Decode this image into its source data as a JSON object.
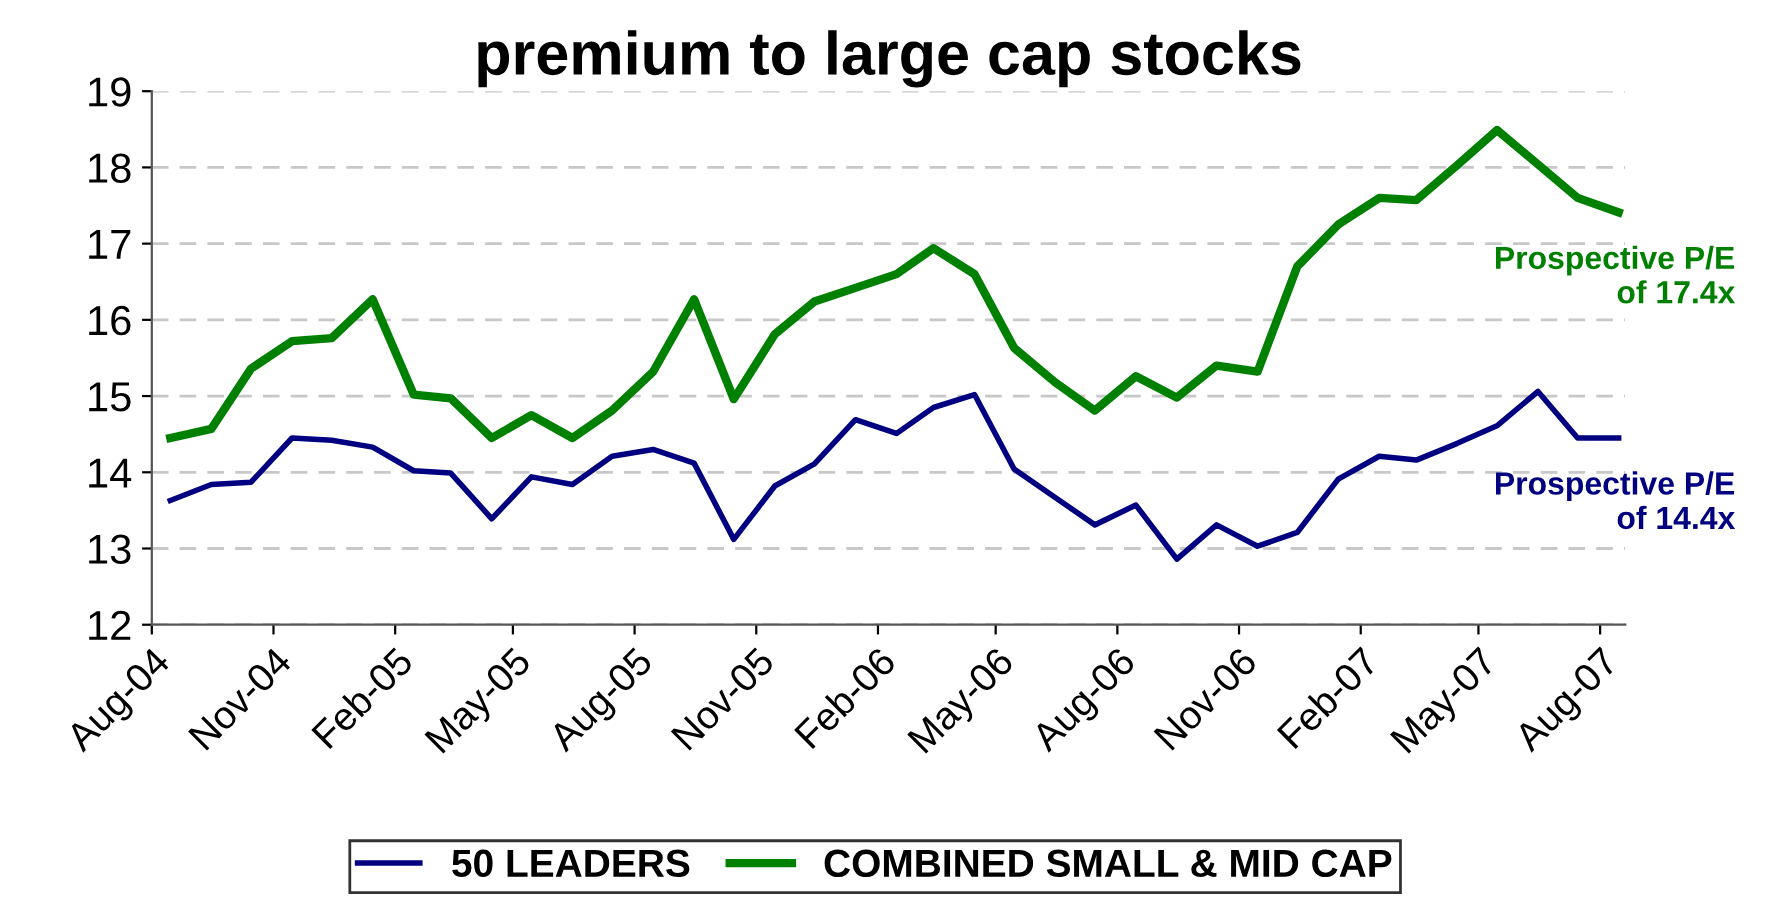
{
  "chart_data": {
    "type": "line",
    "title": "premium to large cap stocks",
    "x": [
      "2004-08-15",
      "2004-09-15",
      "2004-10-15",
      "2004-11-15",
      "2004-12-15",
      "2005-01-15",
      "2005-02-15",
      "2005-03-15",
      "2005-04-15",
      "2005-05-15",
      "2005-06-15",
      "2005-07-15",
      "2005-08-15",
      "2005-09-15",
      "2005-10-15",
      "2005-11-15",
      "2005-12-15",
      "2006-01-15",
      "2006-02-15",
      "2006-03-15",
      "2006-04-15",
      "2006-05-15",
      "2006-06-15",
      "2006-07-15",
      "2006-08-15",
      "2006-09-15",
      "2006-10-15",
      "2006-11-15",
      "2006-12-15",
      "2007-01-15",
      "2007-02-15",
      "2007-03-15",
      "2007-04-15",
      "2007-05-15",
      "2007-06-15",
      "2007-07-15",
      "2007-08-15"
    ],
    "series": [
      {
        "name": "50 LEADERS",
        "color": "#000080",
        "values": [
          13.63,
          13.84,
          13.87,
          14.45,
          14.42,
          14.33,
          14.02,
          13.99,
          13.39,
          13.94,
          13.84,
          14.21,
          14.3,
          14.12,
          13.12,
          13.82,
          14.11,
          14.69,
          14.51,
          14.85,
          15.02,
          14.04,
          13.67,
          13.31,
          13.57,
          12.86,
          13.31,
          13.03,
          13.21,
          13.91,
          14.21,
          14.16,
          14.38,
          14.61,
          15.06,
          14.45,
          14.45
        ]
      },
      {
        "name": "COMBINED SMALL & MID CAP",
        "color": "#008000",
        "values": [
          14.45,
          14.57,
          15.36,
          15.72,
          15.76,
          16.27,
          15.02,
          14.97,
          14.45,
          14.75,
          14.45,
          14.81,
          15.32,
          16.27,
          14.96,
          15.81,
          16.24,
          16.42,
          16.6,
          16.94,
          16.6,
          15.63,
          15.18,
          14.81,
          15.26,
          14.98,
          15.4,
          15.32,
          16.7,
          17.25,
          17.6,
          17.57,
          18.03,
          18.49,
          18.04,
          17.6,
          17.41
        ]
      }
    ],
    "xlim": [
      "2004-08-01",
      "2007-08-20"
    ],
    "xticks": [
      {
        "value": "2004-08-01",
        "label": "Aug-04"
      },
      {
        "value": "2004-11-01",
        "label": "Nov-04"
      },
      {
        "value": "2005-02-01",
        "label": "Feb-05"
      },
      {
        "value": "2005-05-01",
        "label": "May-05"
      },
      {
        "value": "2005-08-01",
        "label": "Aug-05"
      },
      {
        "value": "2005-11-01",
        "label": "Nov-05"
      },
      {
        "value": "2006-02-01",
        "label": "Feb-06"
      },
      {
        "value": "2006-05-01",
        "label": "May-06"
      },
      {
        "value": "2006-08-01",
        "label": "Aug-06"
      },
      {
        "value": "2006-11-01",
        "label": "Nov-06"
      },
      {
        "value": "2007-02-01",
        "label": "Feb-07"
      },
      {
        "value": "2007-05-01",
        "label": "May-07"
      },
      {
        "value": "2007-08-01",
        "label": "Aug-07"
      }
    ],
    "ylim": [
      12,
      19
    ],
    "yticks": [
      12,
      13,
      14,
      15,
      16,
      17,
      18,
      19
    ],
    "grid": "y",
    "legend": "bottom",
    "marker": "none",
    "line_style": "solid",
    "annotations": [
      {
        "text": "Prospective P/E\nof 14.4x",
        "x": "2007-08-15",
        "y": 14.45
      },
      {
        "text": "Prospective P/E\nof 17.4x",
        "x": "2007-08-15",
        "y": 17.41
      }
    ]
  }
}
